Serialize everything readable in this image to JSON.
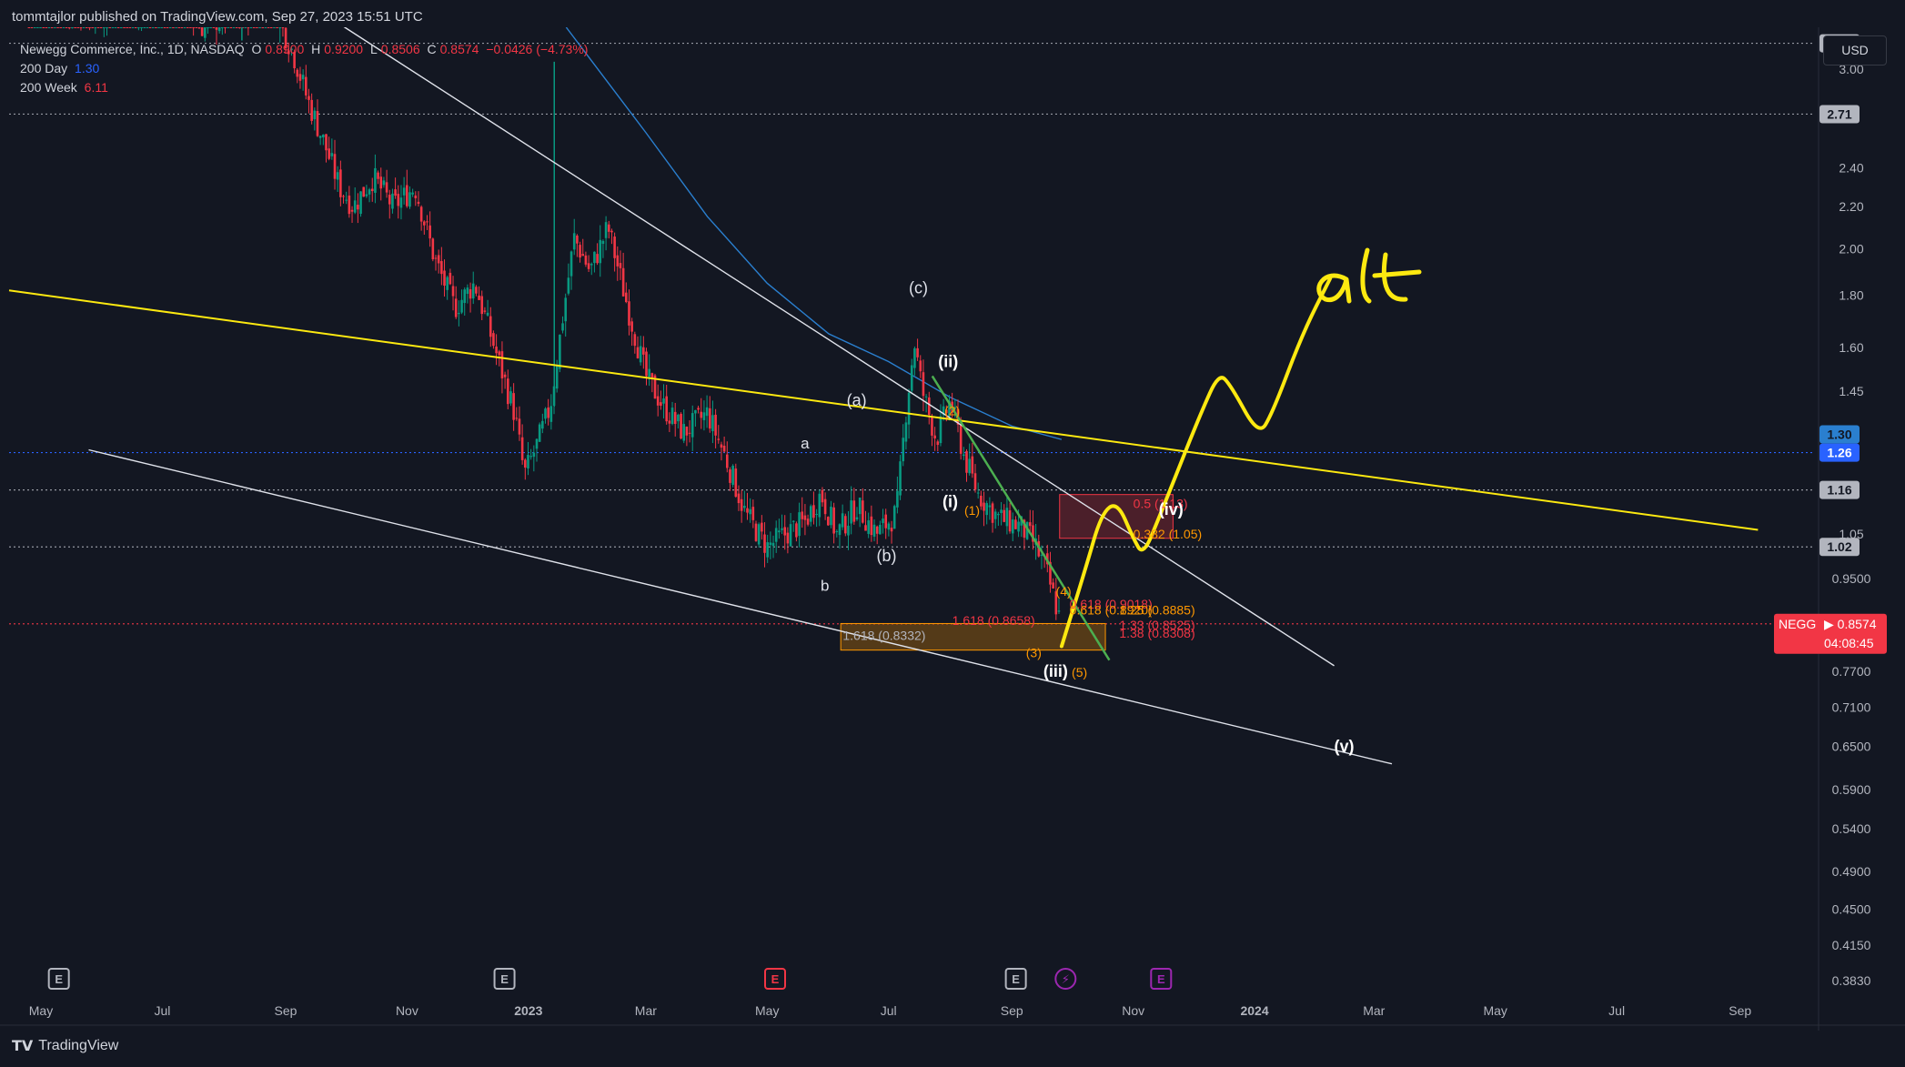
{
  "header": {
    "published": "tommtajlor published on TradingView.com, Sep 27, 2023 15:51 UTC"
  },
  "legend": {
    "symbol": "Newegg Commerce, Inc., 1D, NASDAQ",
    "o_label": "O",
    "o": "0.8900",
    "h_label": "H",
    "h": "0.9200",
    "l_label": "L",
    "l": "0.8506",
    "c_label": "C",
    "c": "0.8574",
    "change": "−0.0426 (−4.73%)",
    "ma_day_label": "200 Day",
    "ma_day_value": "1.30",
    "ma_week_label": "200 Week",
    "ma_week_value": "6.11"
  },
  "currency_button": "USD",
  "footer": {
    "brand": "TradingView"
  },
  "colors": {
    "background": "#131722",
    "grid_dotted": "#9598a1",
    "up": "#089981",
    "down": "#f23645",
    "yellow": "#fde910",
    "green": "#4caf50",
    "orange": "#ff9800",
    "ma_day": "#2a7fcf",
    "blue_level": "#2962ff"
  },
  "chart_data": {
    "type": "candlestick",
    "symbol": "NEGG",
    "y_scale": "log",
    "ylim": [
      0.37,
      3.4
    ],
    "x_range": [
      "2022-04-15",
      "2024-10-10"
    ],
    "x_tick_labels": [
      {
        "label": "May",
        "date": "2022-05-01"
      },
      {
        "label": "Jul",
        "date": "2022-07-01"
      },
      {
        "label": "Sep",
        "date": "2022-09-01"
      },
      {
        "label": "Nov",
        "date": "2022-11-01"
      },
      {
        "label": "2023",
        "date": "2023-01-01",
        "bold": true
      },
      {
        "label": "Mar",
        "date": "2023-03-01"
      },
      {
        "label": "May",
        "date": "2023-05-01"
      },
      {
        "label": "Jul",
        "date": "2023-07-01"
      },
      {
        "label": "Sep",
        "date": "2023-09-01"
      },
      {
        "label": "Nov",
        "date": "2023-11-01"
      },
      {
        "label": "2024",
        "date": "2024-01-01",
        "bold": true
      },
      {
        "label": "Mar",
        "date": "2024-03-01"
      },
      {
        "label": "May",
        "date": "2024-05-01"
      },
      {
        "label": "Jul",
        "date": "2024-07-01"
      },
      {
        "label": "Sep",
        "date": "2024-09-01"
      }
    ],
    "y_tick_labels": [
      "3.00",
      "2.40",
      "2.20",
      "2.00",
      "1.80",
      "1.60",
      "1.45",
      "1.05",
      "0.9500",
      "0.7700",
      "0.7100",
      "0.6500",
      "0.5900",
      "0.5400",
      "0.4900",
      "0.4500",
      "0.4150",
      "0.3830"
    ],
    "price_tags": [
      {
        "label": "3.18",
        "price": 3.18,
        "bg": "#b2b5be",
        "fg": "#131722"
      },
      {
        "label": "2.71",
        "price": 2.71,
        "bg": "#b2b5be",
        "fg": "#131722"
      },
      {
        "label": "1.30",
        "price": 1.315,
        "bg": "#2a7fcf",
        "fg": "#131722"
      },
      {
        "label": "1.26",
        "price": 1.262,
        "bg": "#2962ff",
        "fg": "#ffffff"
      },
      {
        "label": "1.16",
        "price": 1.16,
        "bg": "#b2b5be",
        "fg": "#131722"
      },
      {
        "label": "1.02",
        "price": 1.02,
        "bg": "#b2b5be",
        "fg": "#131722"
      }
    ],
    "last_price": {
      "ticker": "NEGG",
      "value": "0.8574",
      "price": 0.8574,
      "countdown": "04:08:45"
    },
    "horizontal_levels": [
      {
        "price": 3.18,
        "style": "dotted",
        "color": "#9598a1"
      },
      {
        "price": 2.71,
        "style": "dotted",
        "color": "#9598a1"
      },
      {
        "price": 1.262,
        "style": "dotted",
        "color": "#2962ff"
      },
      {
        "price": 1.16,
        "style": "dotted",
        "color": "#9598a1"
      },
      {
        "price": 1.02,
        "style": "dotted",
        "color": "#9598a1"
      },
      {
        "price": 0.8574,
        "style": "dotted",
        "color": "#f23645"
      }
    ],
    "price_path": [
      [
        "2022-04-25",
        3.5
      ],
      [
        "2022-05-15",
        3.45
      ],
      [
        "2022-06-01",
        3.4
      ],
      [
        "2022-06-20",
        3.45
      ],
      [
        "2022-07-05",
        3.55
      ],
      [
        "2022-07-20",
        3.3
      ],
      [
        "2022-08-05",
        3.4
      ],
      [
        "2022-08-25",
        3.5
      ],
      [
        "2022-09-05",
        3.1
      ],
      [
        "2022-09-12",
        2.8
      ],
      [
        "2022-09-20",
        2.55
      ],
      [
        "2022-09-28",
        2.3
      ],
      [
        "2022-10-05",
        2.2
      ],
      [
        "2022-10-15",
        2.35
      ],
      [
        "2022-10-25",
        2.2
      ],
      [
        "2022-11-05",
        2.3
      ],
      [
        "2022-11-15",
        1.95
      ],
      [
        "2022-11-25",
        1.75
      ],
      [
        "2022-12-05",
        1.85
      ],
      [
        "2022-12-15",
        1.6
      ],
      [
        "2022-12-25",
        1.38
      ],
      [
        "2022-12-30",
        1.2
      ],
      [
        "2023-01-05",
        1.28
      ],
      [
        "2023-01-12",
        1.4
      ],
      [
        "2023-01-18",
        1.7
      ],
      [
        "2023-01-24",
        2.05
      ],
      [
        "2023-02-01",
        1.9
      ],
      [
        "2023-02-10",
        2.1
      ],
      [
        "2023-02-20",
        1.75
      ],
      [
        "2023-03-01",
        1.5
      ],
      [
        "2023-03-10",
        1.4
      ],
      [
        "2023-03-20",
        1.32
      ],
      [
        "2023-04-01",
        1.38
      ],
      [
        "2023-04-10",
        1.25
      ],
      [
        "2023-04-20",
        1.1
      ],
      [
        "2023-05-01",
        1.02
      ],
      [
        "2023-05-10",
        1.05
      ],
      [
        "2023-05-20",
        1.08
      ],
      [
        "2023-05-28",
        1.15
      ],
      [
        "2023-06-05",
        1.05
      ],
      [
        "2023-06-15",
        1.12
      ],
      [
        "2023-06-25",
        1.05
      ],
      [
        "2023-07-05",
        1.1
      ],
      [
        "2023-07-10",
        1.4
      ],
      [
        "2023-07-14",
        1.62
      ],
      [
        "2023-07-18",
        1.45
      ],
      [
        "2023-07-25",
        1.3
      ],
      [
        "2023-08-01",
        1.42
      ],
      [
        "2023-08-08",
        1.25
      ],
      [
        "2023-08-15",
        1.15
      ],
      [
        "2023-08-25",
        1.09
      ],
      [
        "2023-09-05",
        1.07
      ],
      [
        "2023-09-12",
        1.03
      ],
      [
        "2023-09-18",
        0.97
      ],
      [
        "2023-09-22",
        0.91
      ],
      [
        "2023-09-26",
        0.8574
      ]
    ],
    "spikes": [
      {
        "date": "2023-01-14",
        "high": 3.05,
        "low": 1.4
      },
      {
        "date": "2022-08-10",
        "high": 3.5,
        "low": 3.2
      }
    ],
    "ma_200_day": [
      [
        "2023-01-20",
        3.55
      ],
      [
        "2023-03-01",
        2.6
      ],
      [
        "2023-04-01",
        2.15
      ],
      [
        "2023-05-01",
        1.85
      ],
      [
        "2023-06-01",
        1.65
      ],
      [
        "2023-07-01",
        1.55
      ],
      [
        "2023-08-01",
        1.43
      ],
      [
        "2023-09-01",
        1.34
      ],
      [
        "2023-09-26",
        1.3
      ]
    ],
    "trendlines": [
      {
        "from": [
          "2022-09-15",
          3.45
        ],
        "to": [
          "2024-02-10",
          0.78
        ],
        "color": "#e0e3eb",
        "width": 1.4
      },
      {
        "from": [
          "2022-05-25",
          1.27
        ],
        "to": [
          "2024-03-10",
          0.625
        ],
        "color": "#e0e3eb",
        "width": 1.4
      },
      {
        "from": [
          "2022-04-15",
          1.82
        ],
        "to": [
          "2024-09-10",
          1.06
        ],
        "color": "#fde910",
        "width": 2
      },
      {
        "from": [
          "2023-07-23",
          1.5
        ],
        "to": [
          "2023-10-20",
          0.79
        ],
        "color": "#4caf50",
        "width": 2.5
      }
    ],
    "boxes": [
      {
        "from": [
          "2023-06-07",
          0.858
        ],
        "to": [
          "2023-10-18",
          0.808
        ],
        "fill": "rgba(255,152,0,0.28)",
        "stroke": "#ff9800"
      },
      {
        "from": [
          "2023-09-25",
          1.148
        ],
        "to": [
          "2023-11-21",
          1.04
        ],
        "fill": "rgba(242,54,69,0.25)",
        "stroke": "#f23645"
      }
    ],
    "fib_labels": [
      {
        "text": "0.5 (1.13)",
        "at": [
          "2023-11-01",
          1.125
        ],
        "color": "#f23645"
      },
      {
        "text": "0.382 (1.05)",
        "at": [
          "2023-11-01",
          1.05
        ],
        "color": "#ff9800"
      },
      {
        "text": "0.618 (0.9018)",
        "at": [
          "2023-09-30",
          0.897
        ],
        "color": "#f23645"
      },
      {
        "text": "0.618 (0.8920)",
        "at": [
          "2023-09-30",
          0.885
        ],
        "color": "#ff9800"
      },
      {
        "text": "1.25 (0.8885)",
        "at": [
          "2023-10-25",
          0.885
        ],
        "color": "#ff9800"
      },
      {
        "text": "1.618 (0.8658)",
        "at": [
          "2023-08-02",
          0.864
        ],
        "color": "#f23645"
      },
      {
        "text": "1.33 (0.8525)",
        "at": [
          "2023-10-25",
          0.855
        ],
        "color": "#f23645"
      },
      {
        "text": "1.618 (0.8332)",
        "at": [
          "2023-06-08",
          0.835
        ],
        "color": "#b2b5be"
      },
      {
        "text": "1.38 (0.8308)",
        "at": [
          "2023-10-25",
          0.84
        ],
        "color": "#f23645"
      }
    ],
    "wave_labels": [
      {
        "text": "(c)",
        "at": [
          "2023-07-16",
          1.83
        ],
        "color": "#e0e3eb",
        "size": 18
      },
      {
        "text": "(ii)",
        "at": [
          "2023-07-31",
          1.55
        ],
        "color": "#ffffff",
        "size": 18,
        "bold": true
      },
      {
        "text": "(a)",
        "at": [
          "2023-06-15",
          1.42
        ],
        "color": "#e0e3eb",
        "size": 18
      },
      {
        "text": "a",
        "at": [
          "2023-05-20",
          1.29
        ],
        "color": "#e0e3eb",
        "size": 17
      },
      {
        "text": "b",
        "at": [
          "2023-05-30",
          0.935
        ],
        "color": "#e0e3eb",
        "size": 17
      },
      {
        "text": "(b)",
        "at": [
          "2023-06-30",
          1.0
        ],
        "color": "#e0e3eb",
        "size": 18
      },
      {
        "text": "(i)",
        "at": [
          "2023-08-01",
          1.13
        ],
        "color": "#ffffff",
        "size": 18,
        "bold": true
      },
      {
        "text": "(iii)",
        "at": [
          "2023-09-23",
          0.77
        ],
        "color": "#ffffff",
        "size": 18,
        "bold": true
      },
      {
        "text": "(iv)",
        "at": [
          "2023-11-20",
          1.11
        ],
        "color": "#ffffff",
        "size": 18,
        "bold": true
      },
      {
        "text": "(v)",
        "at": [
          "2024-02-15",
          0.65
        ],
        "color": "#ffffff",
        "size": 18,
        "bold": true
      },
      {
        "text": "(2)",
        "at": [
          "2023-08-02",
          1.39
        ],
        "color": "#ff9800",
        "size": 14
      },
      {
        "text": "(1)",
        "at": [
          "2023-08-12",
          1.11
        ],
        "color": "#ff9800",
        "size": 14
      },
      {
        "text": "(4)",
        "at": [
          "2023-09-27",
          0.925
        ],
        "color": "#ff9800",
        "size": 14
      },
      {
        "text": "(3)",
        "at": [
          "2023-09-12",
          0.805
        ],
        "color": "#ff9800",
        "size": 14
      },
      {
        "text": "(5)",
        "at": [
          "2023-10-05",
          0.77
        ],
        "color": "#ff9800",
        "size": 14
      }
    ],
    "projection": [
      [
        "2023-09-26",
        0.815
      ],
      [
        "2023-10-08",
        0.97
      ],
      [
        "2023-10-16",
        1.1
      ],
      [
        "2023-10-24",
        1.13
      ],
      [
        "2023-11-01",
        1.04
      ],
      [
        "2023-11-06",
        1.0
      ],
      [
        "2023-11-14",
        1.09
      ],
      [
        "2023-11-24",
        1.22
      ],
      [
        "2023-12-05",
        1.38
      ],
      [
        "2023-12-14",
        1.51
      ],
      [
        "2023-12-20",
        1.47
      ],
      [
        "2024-01-03",
        1.31
      ],
      [
        "2024-01-10",
        1.38
      ],
      [
        "2024-01-25",
        1.65
      ],
      [
        "2024-02-08",
        1.87
      ]
    ],
    "handwriting": "alt",
    "event_markers": [
      {
        "label": "E",
        "date": "2022-05-10",
        "color": "#b2b5be"
      },
      {
        "label": "E",
        "date": "2022-12-20",
        "color": "#b2b5be"
      },
      {
        "label": "E",
        "date": "2023-05-05",
        "color": "#f23645"
      },
      {
        "label": "E",
        "date": "2023-09-03",
        "color": "#b2b5be"
      },
      {
        "label": "⚡",
        "date": "2023-09-28",
        "color": "#9c27b0"
      },
      {
        "label": "E",
        "date": "2023-11-15",
        "color": "#9c27b0"
      }
    ]
  }
}
